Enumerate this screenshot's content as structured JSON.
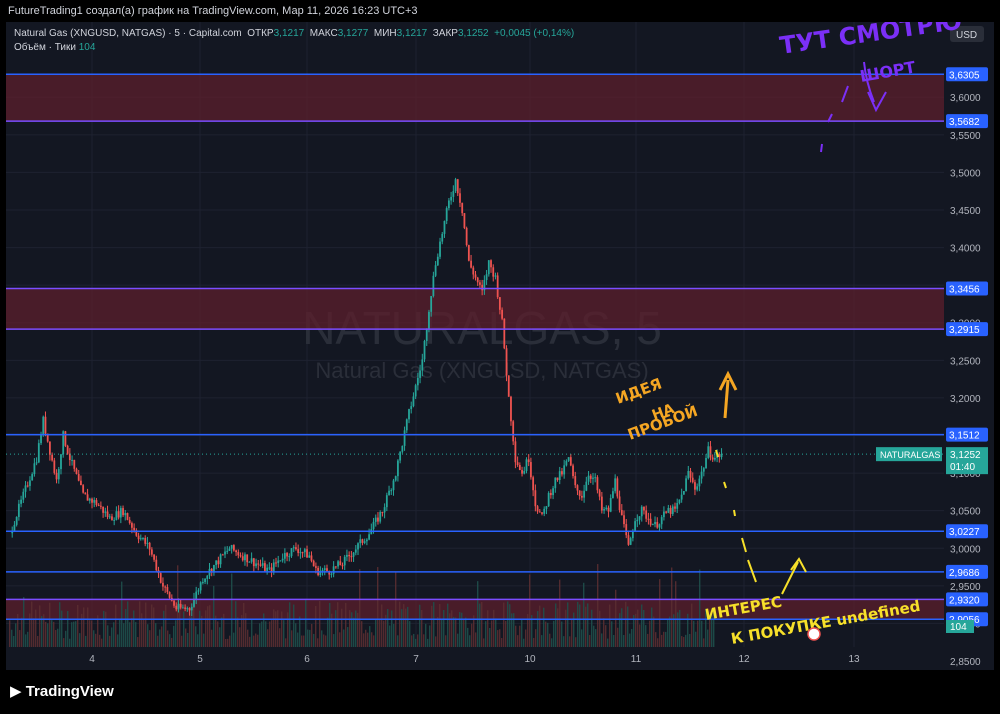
{
  "header": {
    "author_line": "FutureTrading1 создал(а) график на TradingView.com, Мар 11, 2026 16:23 UTC+3"
  },
  "legend": {
    "symbol": "Natural Gas (XNGUSD, NATGAS) · 5 · Capital.com",
    "open_label": "ОТКР",
    "open": "3,1217",
    "high_label": "МАКС",
    "high": "3,1277",
    "low_label": "МИН",
    "low": "3,1217",
    "close_label": "ЗАКР",
    "close": "3,1252",
    "change": "+0,0045 (+0,14%)",
    "volume_label": "Объём · Тики",
    "volume": "104"
  },
  "watermark": {
    "main": "NATURALGAS, 5",
    "sub": "Natural Gas (XNGUSD, NATGAS)"
  },
  "currency": "USD",
  "price_tag": {
    "name": "NATURALGAS",
    "value": "3,1252",
    "countdown": "01:40"
  },
  "volume_tag": "104",
  "annotations": {
    "top_right": "ТУТ СМОТРЮ ШОРТ",
    "idea": "ИДЕЯ НА ПРОБОЙ",
    "buy": "ИНТЕРЕС К ПОКУПКЕ"
  },
  "footer": {
    "brand": "TradingView"
  },
  "colors": {
    "up": "#26a69a",
    "down": "#ef5350",
    "level": "#2962ff",
    "zone": "#5c1f2c",
    "annotation_orange": "#f5a623",
    "annotation_yellow": "#f7e02a",
    "annotation_purple": "#7b2ff7"
  },
  "chart_data": {
    "type": "candlestick",
    "timeframe": "5",
    "ylim": [
      2.84,
      3.64
    ],
    "y_ticks": [
      "3,6000",
      "3,5500",
      "3,5000",
      "3,4500",
      "3,4000",
      "3,3500",
      "3,3000",
      "3,2500",
      "3,2000",
      "3,1500",
      "3,1000",
      "3,0500",
      "3,0000",
      "2,9500",
      "2,9000",
      "2,8500"
    ],
    "x_ticks": [
      "4",
      "5",
      "6",
      "7",
      "10",
      "11",
      "12",
      "13"
    ],
    "levels": [
      {
        "value": 3.6305,
        "label": "3,6305"
      },
      {
        "value": 3.5682,
        "label": "3,5682"
      },
      {
        "value": 3.3456,
        "label": "3,3456"
      },
      {
        "value": 3.2915,
        "label": "3,2915"
      },
      {
        "value": 3.1512,
        "label": "3,1512"
      },
      {
        "value": 3.0227,
        "label": "3,0227"
      },
      {
        "value": 2.9686,
        "label": "2,9686"
      },
      {
        "value": 2.932,
        "label": "2,9320"
      },
      {
        "value": 2.9056,
        "label": "2,9056"
      }
    ],
    "zones": [
      {
        "from": 3.5682,
        "to": 3.6305
      },
      {
        "from": 3.2915,
        "to": 3.3456
      },
      {
        "from": 2.9056,
        "to": 2.932
      }
    ],
    "price_path": [
      [
        0,
        3.02
      ],
      [
        2,
        3.07
      ],
      [
        4,
        3.12
      ],
      [
        5,
        3.17
      ],
      [
        6,
        3.13
      ],
      [
        7,
        3.09
      ],
      [
        8,
        3.15
      ],
      [
        9,
        3.12
      ],
      [
        11,
        3.07
      ],
      [
        13,
        3.06
      ],
      [
        15,
        3.04
      ],
      [
        17,
        3.05
      ],
      [
        19,
        3.02
      ],
      [
        21,
        3.0
      ],
      [
        23,
        2.95
      ],
      [
        25,
        2.92
      ],
      [
        27,
        2.92
      ],
      [
        29,
        2.96
      ],
      [
        31,
        2.98
      ],
      [
        33,
        3.0
      ],
      [
        35,
        2.99
      ],
      [
        37,
        2.98
      ],
      [
        39,
        2.97
      ],
      [
        41,
        2.99
      ],
      [
        43,
        3.0
      ],
      [
        45,
        2.99
      ],
      [
        46,
        2.97
      ],
      [
        48,
        2.97
      ],
      [
        50,
        2.98
      ],
      [
        52,
        3.0
      ],
      [
        54,
        3.02
      ],
      [
        56,
        3.05
      ],
      [
        58,
        3.1
      ],
      [
        60,
        3.18
      ],
      [
        62,
        3.25
      ],
      [
        63,
        3.32
      ],
      [
        64,
        3.38
      ],
      [
        65,
        3.42
      ],
      [
        66,
        3.46
      ],
      [
        67,
        3.49
      ],
      [
        68,
        3.45
      ],
      [
        69,
        3.38
      ],
      [
        70,
        3.36
      ],
      [
        71,
        3.34
      ],
      [
        72,
        3.38
      ],
      [
        73,
        3.36
      ],
      [
        74,
        3.3
      ],
      [
        75,
        3.2
      ],
      [
        76,
        3.12
      ],
      [
        77,
        3.1
      ],
      [
        78,
        3.12
      ],
      [
        79,
        3.06
      ],
      [
        80,
        3.04
      ],
      [
        81,
        3.07
      ],
      [
        82,
        3.09
      ],
      [
        83,
        3.1
      ],
      [
        84,
        3.12
      ],
      [
        85,
        3.08
      ],
      [
        86,
        3.07
      ],
      [
        87,
        3.1
      ],
      [
        88,
        3.09
      ],
      [
        89,
        3.05
      ],
      [
        90,
        3.05
      ],
      [
        91,
        3.09
      ],
      [
        92,
        3.04
      ],
      [
        93,
        3.0
      ],
      [
        94,
        3.04
      ],
      [
        95,
        3.05
      ],
      [
        96,
        3.04
      ],
      [
        97,
        3.03
      ],
      [
        98,
        3.04
      ],
      [
        99,
        3.05
      ],
      [
        100,
        3.05
      ],
      [
        101,
        3.07
      ],
      [
        102,
        3.1
      ],
      [
        103,
        3.08
      ],
      [
        104,
        3.1
      ],
      [
        105,
        3.13
      ],
      [
        106,
        3.12
      ],
      [
        107,
        3.125
      ]
    ]
  }
}
